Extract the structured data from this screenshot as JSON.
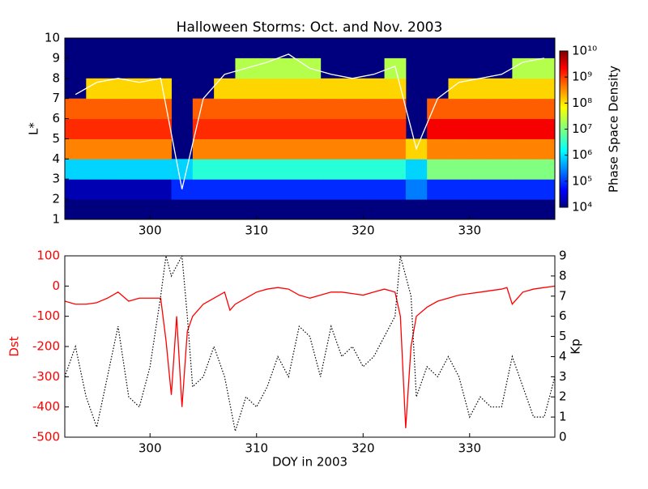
{
  "chart_data": [
    {
      "type": "heatmap",
      "title": "Halloween Storms: Oct. and Nov. 2003",
      "ylabel": "L*",
      "x_edges": [
        292,
        294,
        296,
        298,
        300,
        302,
        304,
        306,
        308,
        310,
        312,
        314,
        316,
        318,
        320,
        322,
        324,
        326,
        328,
        330,
        332,
        334,
        336,
        338
      ],
      "y_edges": [
        1,
        2,
        3,
        4,
        5,
        6,
        7,
        8,
        9,
        10
      ],
      "z": [
        [
          null,
          null,
          null,
          null,
          null,
          null,
          null,
          null,
          null,
          null,
          null,
          null,
          null,
          null,
          null,
          null,
          null,
          null,
          null,
          null,
          null,
          null,
          null
        ],
        [
          20000,
          20000,
          20000,
          20000,
          20000,
          100000,
          100000,
          100000,
          100000,
          100000,
          100000,
          100000,
          100000,
          100000,
          100000,
          100000,
          300000,
          100000,
          100000,
          100000,
          100000,
          100000,
          100000
        ],
        [
          1000000,
          1000000,
          1000000,
          1000000,
          1000000,
          1000000,
          3000000,
          3000000,
          3000000,
          3000000,
          3000000,
          3000000,
          3000000,
          3000000,
          3000000,
          3000000,
          1000000,
          10000000,
          10000000,
          10000000,
          10000000,
          10000000,
          10000000
        ],
        [
          300000000,
          300000000,
          300000000,
          300000000,
          300000000,
          null,
          300000000,
          300000000,
          300000000,
          300000000,
          300000000,
          300000000,
          300000000,
          300000000,
          300000000,
          300000000,
          100000000,
          300000000,
          300000000,
          300000000,
          300000000,
          300000000,
          300000000
        ],
        [
          1000000000,
          1000000000,
          1000000000,
          1000000000,
          1000000000,
          null,
          1000000000,
          1000000000,
          1000000000,
          1000000000,
          1000000000,
          1000000000,
          1000000000,
          1000000000,
          1000000000,
          1000000000,
          null,
          2000000000,
          2000000000,
          2000000000,
          2000000000,
          2000000000,
          2000000000
        ],
        [
          500000000,
          500000000,
          500000000,
          500000000,
          500000000,
          null,
          500000000,
          500000000,
          500000000,
          500000000,
          500000000,
          500000000,
          500000000,
          500000000,
          500000000,
          500000000,
          null,
          500000000,
          500000000,
          500000000,
          500000000,
          500000000,
          500000000
        ],
        [
          null,
          100000000,
          100000000,
          100000000,
          100000000,
          null,
          null,
          100000000,
          100000000,
          100000000,
          100000000,
          100000000,
          100000000,
          100000000,
          100000000,
          100000000,
          null,
          null,
          100000000,
          100000000,
          100000000,
          100000000,
          100000000
        ],
        [
          null,
          null,
          null,
          null,
          null,
          null,
          null,
          null,
          20000000,
          20000000,
          20000000,
          20000000,
          null,
          null,
          null,
          20000000,
          null,
          null,
          null,
          null,
          null,
          20000000,
          20000000
        ],
        [
          null,
          null,
          null,
          null,
          null,
          null,
          null,
          null,
          null,
          null,
          null,
          null,
          null,
          null,
          null,
          null,
          null,
          null,
          null,
          null,
          null,
          null,
          null
        ]
      ],
      "background": "#00007f",
      "boundary": {
        "color": "#ffffff",
        "x": [
          293,
          295,
          297,
          299,
          301,
          303,
          305,
          307,
          309,
          311,
          313,
          315,
          317,
          319,
          321,
          323,
          325,
          327,
          329,
          331,
          333,
          335,
          337
        ],
        "values": [
          7.2,
          7.8,
          8.0,
          7.8,
          8.0,
          2.5,
          7.0,
          8.2,
          8.5,
          8.8,
          9.2,
          8.5,
          8.2,
          8.0,
          8.2,
          8.6,
          4.5,
          7.0,
          7.8,
          8.0,
          8.2,
          8.8,
          9.0
        ]
      },
      "xlim": [
        292,
        338
      ],
      "xticks": [
        300,
        310,
        320,
        330
      ],
      "ylim": [
        1,
        10
      ],
      "yticks": [
        1,
        2,
        3,
        4,
        5,
        6,
        7,
        8,
        9,
        10
      ],
      "colorbar": {
        "label": "Phase Space Density",
        "log": true,
        "lim": [
          10000,
          10000000000
        ],
        "ticks": [
          {
            "value": 10000,
            "label": "10⁴"
          },
          {
            "value": 100000,
            "label": "10⁵"
          },
          {
            "value": 1000000,
            "label": "10⁶"
          },
          {
            "value": 10000000,
            "label": "10⁷"
          },
          {
            "value": 100000000,
            "label": "10⁸"
          },
          {
            "value": 1000000000,
            "label": "10⁹"
          },
          {
            "value": 10000000000,
            "label": "10¹⁰"
          }
        ]
      }
    },
    {
      "type": "line",
      "xlabel": "DOY in 2003",
      "ylabel": "Dst",
      "y2label": "Kp",
      "ylabel_color": "#ff0000",
      "xlim": [
        292,
        338
      ],
      "xticks": [
        300,
        310,
        320,
        330
      ],
      "ylim": [
        -500,
        100
      ],
      "yticks": [
        -500,
        -400,
        -300,
        -200,
        -100,
        0,
        100
      ],
      "y2lim": [
        0,
        9
      ],
      "y2ticks": [
        0,
        1,
        2,
        3,
        4,
        5,
        6,
        7,
        8,
        9
      ],
      "series": [
        {
          "name": "Dst",
          "color": "#ff0000",
          "dotted": false,
          "x": [
            292,
            293,
            294,
            295,
            296,
            297,
            298,
            299,
            300,
            301,
            301.5,
            302,
            302.5,
            303,
            303.5,
            304,
            305,
            306,
            307,
            307.5,
            308,
            309,
            310,
            311,
            312,
            313,
            314,
            315,
            316,
            317,
            318,
            319,
            320,
            321,
            322,
            323,
            323.5,
            324,
            324.5,
            325,
            326,
            327,
            328,
            329,
            330,
            331,
            332,
            333,
            333.5,
            334,
            335,
            336,
            337,
            338
          ],
          "values": [
            -50,
            -60,
            -60,
            -55,
            -40,
            -20,
            -50,
            -40,
            -40,
            -40,
            -180,
            -360,
            -100,
            -400,
            -150,
            -100,
            -60,
            -40,
            -20,
            -80,
            -60,
            -40,
            -20,
            -10,
            -5,
            -10,
            -30,
            -40,
            -30,
            -20,
            -20,
            -25,
            -30,
            -20,
            -10,
            -20,
            -100,
            -470,
            -200,
            -100,
            -70,
            -50,
            -40,
            -30,
            -25,
            -20,
            -15,
            -10,
            -5,
            -60,
            -20,
            -10,
            -5,
            0
          ]
        },
        {
          "name": "Kp",
          "color": "#000000",
          "dotted": true,
          "axis": "y2",
          "x": [
            292,
            293,
            294,
            295,
            296,
            297,
            298,
            299,
            300,
            301,
            301.5,
            302,
            303,
            303.5,
            304,
            305,
            306,
            307,
            308,
            309,
            310,
            311,
            312,
            313,
            314,
            315,
            316,
            317,
            318,
            319,
            320,
            321,
            322,
            323,
            323.5,
            324,
            324.5,
            325,
            326,
            327,
            328,
            329,
            330,
            331,
            332,
            333,
            334,
            335,
            336,
            337,
            338
          ],
          "values": [
            3,
            4.5,
            2,
            0.5,
            3,
            5.5,
            2,
            1.5,
            3.5,
            7,
            9,
            8,
            9,
            6,
            2.5,
            3,
            4.5,
            3,
            0.3,
            2,
            1.5,
            2.5,
            4,
            3,
            5.5,
            5,
            3,
            5.5,
            4,
            4.5,
            3.5,
            4,
            5,
            6,
            9,
            8,
            7,
            2,
            3.5,
            3,
            4,
            3,
            1,
            2,
            1.5,
            1.5,
            4,
            2.5,
            1,
            1,
            3
          ]
        }
      ]
    }
  ]
}
